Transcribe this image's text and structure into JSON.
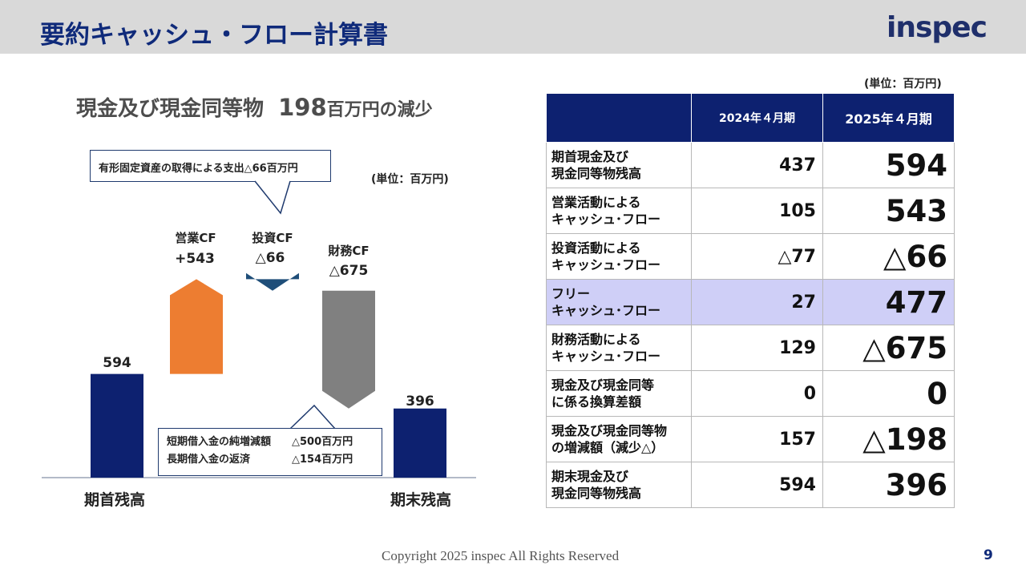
{
  "header": {
    "title": "要約キャッシュ・フロー計算書",
    "logo": "inspec"
  },
  "left": {
    "subtitle_text": "現金及び現金同等物",
    "subtitle_num": "198",
    "subtitle_suffix": "百万円の減少",
    "unit": "(単位：百万円)",
    "callout_top": "有形固定資産の取得による支出△66百万円",
    "callout_bottom": {
      "line1_label": "短期借入金の純増減額",
      "line1_value": "△500百万円",
      "line2_label": "長期借入金の返済",
      "line2_value": "△154百万円"
    }
  },
  "chart_data": {
    "type": "waterfall",
    "steps": [
      {
        "name": "期首残高",
        "label": "",
        "value_label": "594",
        "value": 594,
        "kind": "total",
        "color": "#0d2170"
      },
      {
        "name": "営業CF",
        "label": "営業CF",
        "value_label": "+543",
        "value": 543,
        "kind": "increase",
        "color": "#ed7d31"
      },
      {
        "name": "投資CF",
        "label": "投資CF",
        "value_label": "△66",
        "value": -66,
        "kind": "decrease",
        "color": "#1f4e79"
      },
      {
        "name": "財務CF",
        "label": "財務CF",
        "value_label": "△675",
        "value": -675,
        "kind": "decrease",
        "color": "#808080"
      },
      {
        "name": "期末残高",
        "label": "",
        "value_label": "396",
        "value": 396,
        "kind": "total",
        "color": "#0d2170"
      }
    ],
    "x_labels": [
      "期首残高",
      "期末残高"
    ]
  },
  "table": {
    "unit": "(単位：百万円)",
    "headers": [
      "",
      "2024年４月期",
      "2025年４月期"
    ],
    "rows": [
      {
        "label1": "期首現金及び",
        "label2": "現金同等物残高",
        "v2024": "437",
        "v2025": "594"
      },
      {
        "label1": "営業活動による",
        "label2": "キャッシュ･フロー",
        "v2024": "105",
        "v2025": "543"
      },
      {
        "label1": "投資活動による",
        "label2": "キャッシュ･フロー",
        "v2024": "△77",
        "v2025": "△66"
      },
      {
        "label1": "フリー",
        "label2": "キャッシュ･フロー",
        "v2024": "27",
        "v2025": "477",
        "highlight": true
      },
      {
        "label1": "財務活動による",
        "label2": "キャッシュ･フロー",
        "v2024": "129",
        "v2025": "△675"
      },
      {
        "label1": "現金及び現金同等",
        "label2": "に係る換算差額",
        "v2024": "0",
        "v2025": "0"
      },
      {
        "label1": "現金及び現金同等物",
        "label2": "の増減額（減少△）",
        "v2024": "157",
        "v2025": "△198"
      },
      {
        "label1": "期末現金及び",
        "label2": "現金同等物残高",
        "v2024": "594",
        "v2025": "396"
      }
    ]
  },
  "footer": {
    "copyright": "Copyright 2025 inspec All Rights Reserved",
    "page": "9"
  }
}
